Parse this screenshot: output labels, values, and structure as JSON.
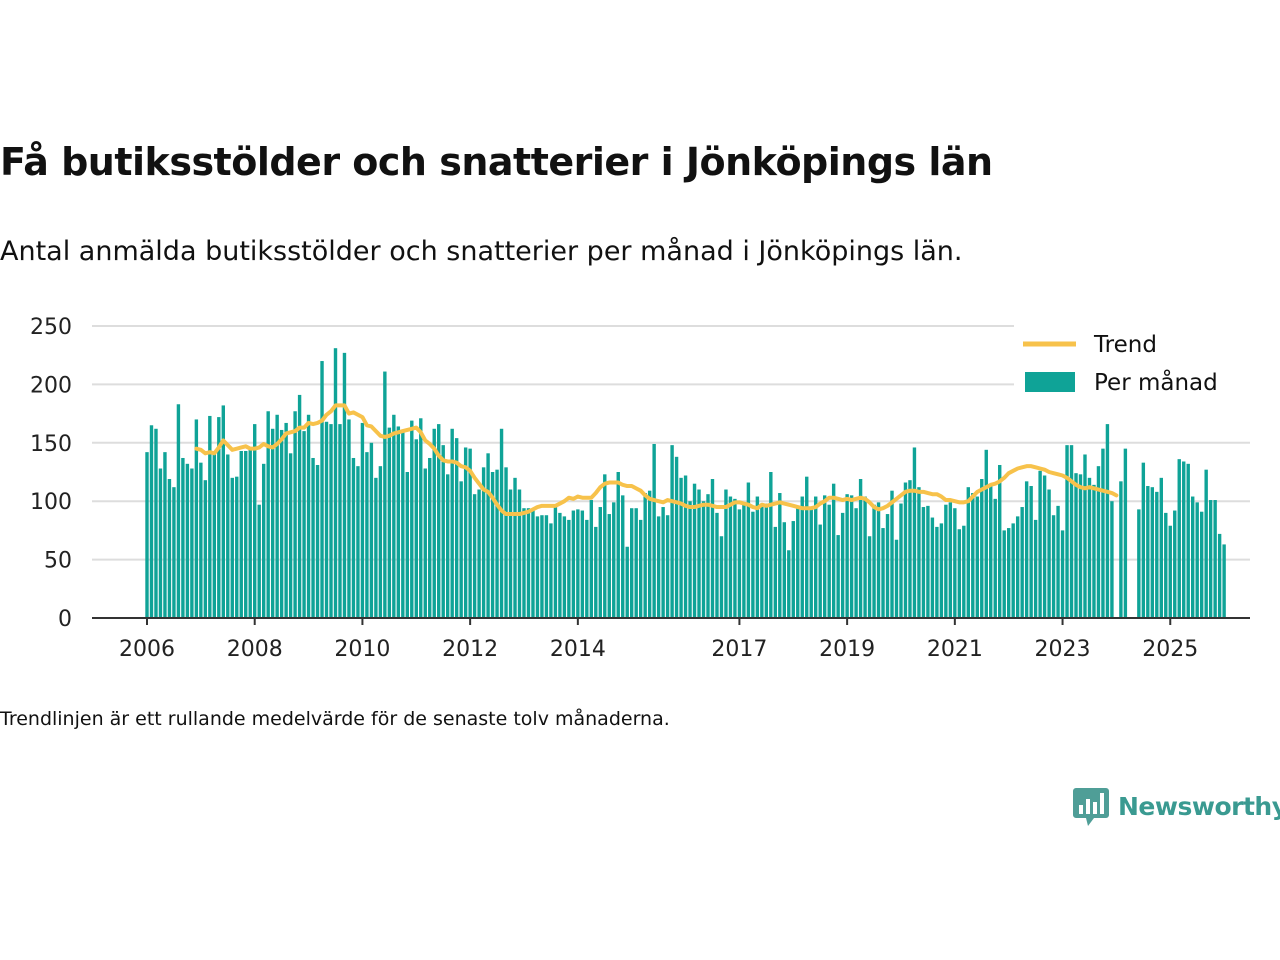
{
  "header": {
    "title": "Få butiksstölder och snatterier i Jönköpings län",
    "subtitle": "Antal anmälda butiksstölder och snatterier per månad i Jönköpings län."
  },
  "footer": {
    "note": "Trendlinjen är ett rullande medelvärde för de senaste tolv månaderna."
  },
  "brand": {
    "name": "Newsworthy",
    "icon": "newsworthy-logo-icon",
    "color": "#3a9a91"
  },
  "colors": {
    "bars": "#0fa397",
    "trend": "#f7c24b",
    "grid": "#dddddd",
    "axis": "#333333"
  },
  "chart_data": {
    "type": "bar",
    "ylim": [
      0,
      250
    ],
    "yticks": [
      "0",
      "50",
      "100",
      "150",
      "200",
      "250"
    ],
    "xticks": [
      {
        "label": "2006",
        "year": 2006
      },
      {
        "label": "2008",
        "year": 2008
      },
      {
        "label": "2010",
        "year": 2010
      },
      {
        "label": "2012",
        "year": 2012
      },
      {
        "label": "2014",
        "year": 2014
      },
      {
        "label": "2017",
        "year": 2017
      },
      {
        "label": "2019",
        "year": 2019
      },
      {
        "label": "2021",
        "year": 2021
      },
      {
        "label": "2023",
        "year": 2023
      },
      {
        "label": "2025",
        "year": 2025
      }
    ],
    "start": "2006-01",
    "grid": true,
    "legend_position": "top-right",
    "series": [
      {
        "name": "Per månad",
        "kind": "bar",
        "color": "#0fa397",
        "values": [
          142,
          165,
          162,
          128,
          142,
          119,
          112,
          183,
          137,
          132,
          128,
          170,
          133,
          118,
          173,
          140,
          172,
          182,
          140,
          120,
          121,
          143,
          143,
          144,
          166,
          97,
          132,
          177,
          162,
          174,
          161,
          167,
          141,
          177,
          191,
          160,
          174,
          137,
          131,
          220,
          168,
          166,
          231,
          166,
          227,
          170,
          137,
          130,
          167,
          142,
          150,
          120,
          130,
          211,
          163,
          174,
          164,
          160,
          125,
          169,
          153,
          171,
          128,
          137,
          162,
          166,
          148,
          123,
          162,
          154,
          117,
          146,
          145,
          106,
          110,
          129,
          141,
          125,
          127,
          162,
          129,
          110,
          120,
          110,
          94,
          94,
          92,
          87,
          88,
          88,
          81,
          96,
          90,
          87,
          84,
          92,
          93,
          92,
          84,
          101,
          78,
          95,
          123,
          89,
          99,
          125,
          105,
          61,
          94,
          94,
          84,
          107,
          109,
          149,
          87,
          95,
          88,
          148,
          138,
          120,
          122,
          100,
          115,
          110,
          100,
          106,
          119,
          90,
          70,
          110,
          104,
          102,
          93,
          97,
          116,
          91,
          104,
          98,
          98,
          125,
          78,
          107,
          82,
          58,
          83,
          96,
          104,
          121,
          94,
          104,
          80,
          105,
          97,
          115,
          71,
          90,
          106,
          105,
          94,
          119,
          104,
          70,
          97,
          99,
          77,
          89,
          109,
          67,
          98,
          116,
          118,
          146,
          112,
          95,
          96,
          86,
          78,
          81,
          97,
          99,
          94,
          76,
          79,
          112,
          107,
          104,
          119,
          144,
          113,
          102,
          131,
          75,
          77,
          81,
          87,
          95,
          117,
          113,
          84,
          126,
          122,
          110,
          88,
          96,
          75,
          148,
          148,
          124,
          123,
          140,
          120,
          114,
          130,
          145,
          166,
          100,
          0,
          117,
          145,
          0,
          0,
          93,
          133,
          113,
          112,
          108,
          120,
          90,
          79,
          92,
          136,
          134,
          132,
          104,
          99,
          91,
          127,
          101,
          101,
          72,
          63
        ]
      },
      {
        "name": "Trend",
        "kind": "line",
        "color": "#f7c24b",
        "start_index": 11,
        "values": [
          145,
          144,
          141,
          142,
          141,
          146,
          152,
          148,
          144,
          145,
          146,
          147,
          145,
          145,
          146,
          149,
          147,
          146,
          149,
          153,
          158,
          159,
          160,
          163,
          163,
          167,
          166,
          167,
          169,
          174,
          177,
          182,
          182,
          182,
          175,
          176,
          174,
          172,
          165,
          164,
          160,
          156,
          155,
          156,
          158,
          159,
          160,
          161,
          162,
          163,
          159,
          152,
          149,
          145,
          139,
          135,
          134,
          134,
          133,
          130,
          129,
          126,
          120,
          115,
          110,
          108,
          103,
          97,
          92,
          89,
          89,
          89,
          89,
          90,
          91,
          93,
          95,
          96,
          96,
          96,
          96,
          98,
          100,
          103,
          102,
          104,
          103,
          103,
          103,
          107,
          112,
          115,
          116,
          116,
          116,
          114,
          113,
          113,
          111,
          109,
          105,
          102,
          101,
          100,
          99,
          101,
          100,
          99,
          98,
          96,
          95,
          95,
          96,
          97,
          97,
          96,
          95,
          95,
          95,
          97,
          99,
          99,
          98,
          97,
          95,
          94,
          97,
          96,
          97,
          98,
          99,
          98,
          97,
          96,
          95,
          94,
          94,
          94,
          95,
          98,
          100,
          103,
          103,
          102,
          101,
          102,
          101,
          102,
          103,
          102,
          99,
          95,
          93,
          94,
          96,
          99,
          102,
          105,
          108,
          109,
          109,
          108,
          108,
          107,
          106,
          106,
          104,
          101,
          101,
          100,
          99,
          99,
          100,
          104,
          108,
          110,
          112,
          114,
          115,
          117,
          120,
          124,
          126,
          128,
          129,
          130,
          130,
          129,
          128,
          127,
          125,
          124,
          123,
          122,
          120,
          117,
          114,
          112,
          111,
          112,
          111,
          110,
          109,
          108,
          107,
          105
        ]
      }
    ],
    "legend": [
      {
        "label": "Trend",
        "kind": "line",
        "color": "#f7c24b"
      },
      {
        "label": "Per månad",
        "kind": "bar",
        "color": "#0fa397"
      }
    ]
  }
}
